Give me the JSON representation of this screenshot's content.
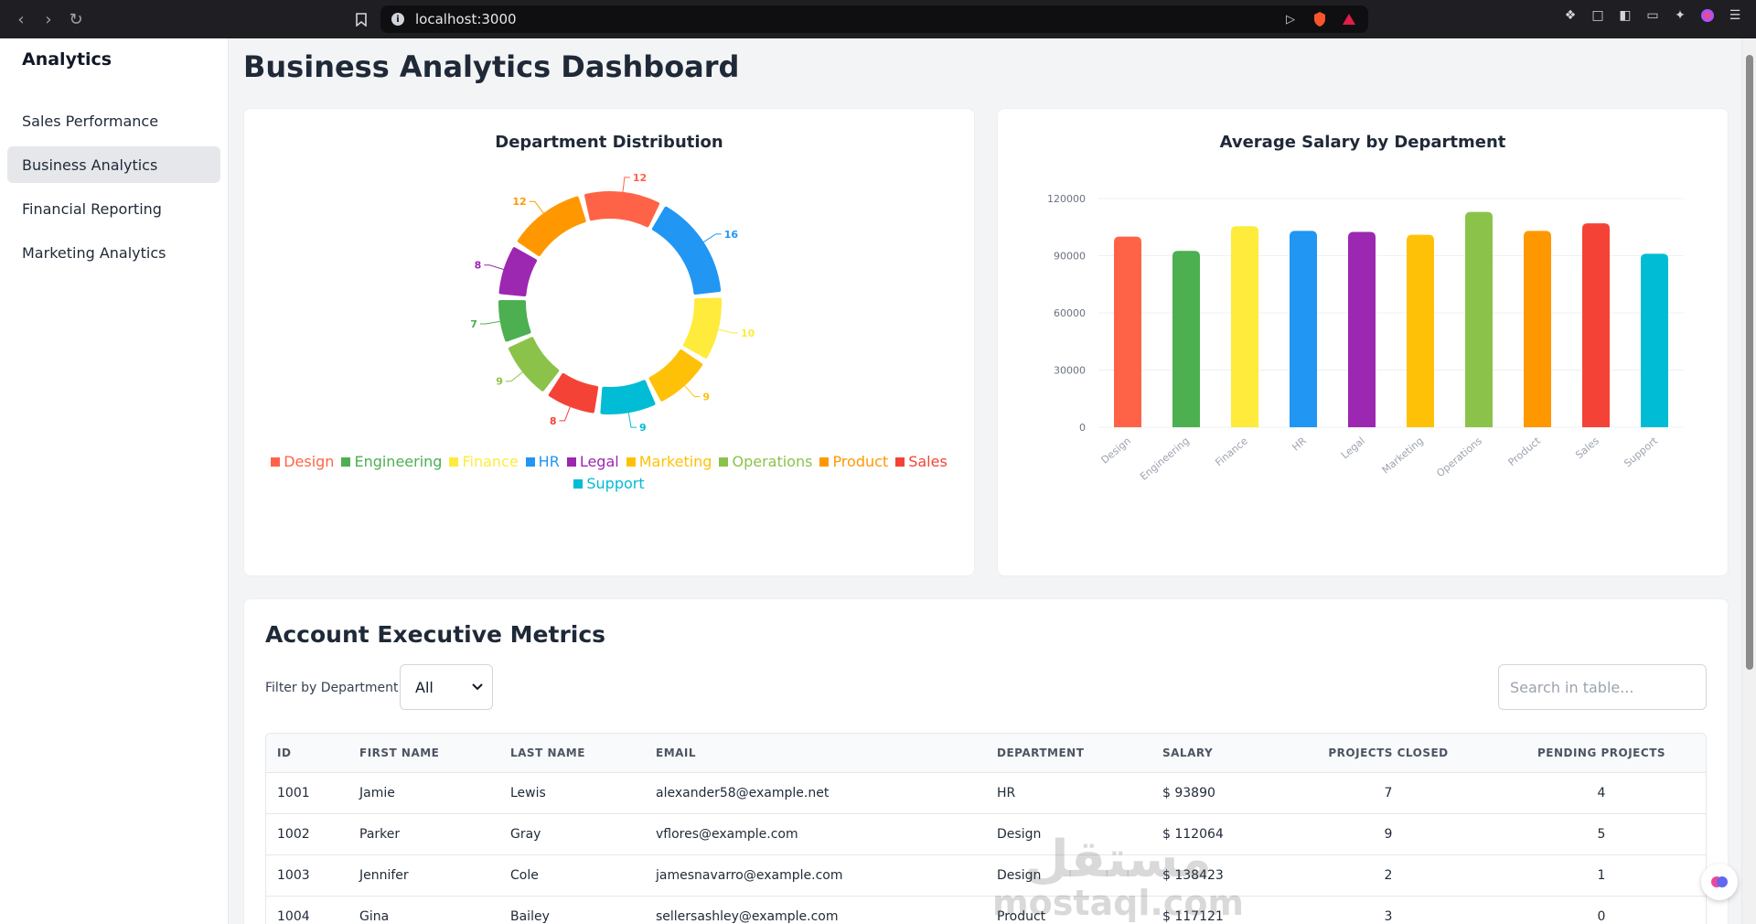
{
  "browser": {
    "url": "localhost:3000"
  },
  "sidebar": {
    "title": "Analytics",
    "items": [
      {
        "label": "Sales Performance"
      },
      {
        "label": "Business Analytics"
      },
      {
        "label": "Financial Reporting"
      },
      {
        "label": "Marketing Analytics"
      }
    ],
    "active_index": 1
  },
  "page": {
    "title": "Business Analytics Dashboard"
  },
  "colors": {
    "Design": "#ff6347",
    "Engineering": "#4caf50",
    "Finance": "#ffeb3b",
    "HR": "#2196f3",
    "Legal": "#9c27b0",
    "Marketing": "#ffc107",
    "Operations": "#8bc34a",
    "Product": "#ff9800",
    "Sales": "#f44336",
    "Support": "#00bcd4"
  },
  "chart_data": [
    {
      "type": "pie",
      "title": "Department Distribution",
      "categories": [
        "Design",
        "Engineering",
        "Finance",
        "HR",
        "Legal",
        "Marketing",
        "Operations",
        "Product",
        "Sales",
        "Support"
      ],
      "slices": [
        {
          "label": "Design",
          "value": 12
        },
        {
          "label": "HR",
          "value": 16
        },
        {
          "label": "Finance",
          "value": 10
        },
        {
          "label": "Marketing",
          "value": 9
        },
        {
          "label": "Support",
          "value": 9
        },
        {
          "label": "Sales",
          "value": 8
        },
        {
          "label": "Operations",
          "value": 9
        },
        {
          "label": "Engineering",
          "value": 7
        },
        {
          "label": "Legal",
          "value": 8
        },
        {
          "label": "Product",
          "value": 12
        }
      ],
      "legend": "bottom"
    },
    {
      "type": "bar",
      "title": "Average Salary by Department",
      "categories": [
        "Design",
        "Engineering",
        "Finance",
        "HR",
        "Legal",
        "Marketing",
        "Operations",
        "Product",
        "Sales",
        "Support"
      ],
      "values": [
        100000,
        92500,
        105500,
        103000,
        102500,
        101000,
        113000,
        103000,
        107000,
        91000
      ],
      "ylim": [
        0,
        120000
      ],
      "yticks": [
        "120000",
        "90000",
        "60000",
        "30000",
        "0"
      ],
      "xlabel": "",
      "ylabel": "",
      "grid": true
    }
  ],
  "table": {
    "title": "Account Executive Metrics",
    "filter_label": "Filter by Department:",
    "filter_value": "All",
    "search_placeholder": "Search in table...",
    "headers": [
      "ID",
      "FIRST NAME",
      "LAST NAME",
      "EMAIL",
      "DEPARTMENT",
      "SALARY",
      "PROJECTS CLOSED",
      "PENDING PROJECTS"
    ],
    "rows": [
      {
        "id": "1001",
        "first": "Jamie",
        "last": "Lewis",
        "email": "alexander58@example.net",
        "dept": "HR",
        "salary": "$ 93890",
        "closed": "7",
        "pending": "4"
      },
      {
        "id": "1002",
        "first": "Parker",
        "last": "Gray",
        "email": "vflores@example.com",
        "dept": "Design",
        "salary": "$ 112064",
        "closed": "9",
        "pending": "5"
      },
      {
        "id": "1003",
        "first": "Jennifer",
        "last": "Cole",
        "email": "jamesnavarro@example.com",
        "dept": "Design",
        "salary": "$ 138423",
        "closed": "2",
        "pending": "1"
      },
      {
        "id": "1004",
        "first": "Gina",
        "last": "Bailey",
        "email": "sellersashley@example.com",
        "dept": "Product",
        "salary": "$ 117121",
        "closed": "3",
        "pending": "0"
      }
    ]
  },
  "watermark": {
    "arabic": "مستقل",
    "latin": "mostaql.com"
  }
}
